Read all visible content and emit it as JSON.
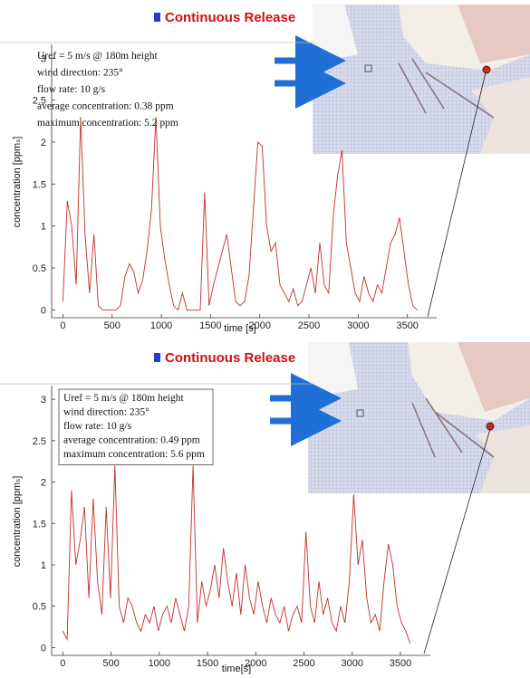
{
  "chart_data": [
    {
      "type": "line",
      "title": "Continuous Release",
      "annotations": [
        "Uref = 5 m/s @ 180m height",
        "wind direction: 235°",
        "flow rate: 10 g/s",
        "average concentration: 0.38 ppm",
        "maximum concentration: 5.2 ppm"
      ],
      "xlabel": "time [s]",
      "ylabel": "concentration [ppmₛ]",
      "color": "#c0302a",
      "xlim": [
        -50,
        3650
      ],
      "ylim": [
        -0.05,
        3.1
      ],
      "xticks": [
        0,
        500,
        1000,
        1500,
        2000,
        2500,
        3000,
        3500
      ],
      "yticks": [
        0,
        0.5,
        1,
        1.5,
        2,
        2.5,
        3
      ],
      "x": [
        0,
        45,
        90,
        135,
        180,
        225,
        270,
        315,
        360,
        405,
        450,
        495,
        540,
        585,
        630,
        675,
        720,
        765,
        810,
        855,
        900,
        945,
        990,
        1035,
        1080,
        1125,
        1170,
        1215,
        1260,
        1305,
        1350,
        1395,
        1440,
        1485,
        1530,
        1575,
        1620,
        1665,
        1710,
        1755,
        1800,
        1845,
        1890,
        1935,
        1980,
        2025,
        2070,
        2115,
        2160,
        2205,
        2250,
        2295,
        2340,
        2385,
        2430,
        2475,
        2520,
        2565,
        2610,
        2655,
        2700,
        2745,
        2790,
        2835,
        2880,
        2925,
        2970,
        3015,
        3060,
        3105,
        3150,
        3195,
        3240,
        3285,
        3330,
        3375,
        3420,
        3465,
        3510,
        3555,
        3600
      ],
      "values": [
        0.1,
        1.3,
        1.0,
        0.3,
        2.3,
        0.9,
        0.2,
        0.9,
        0.05,
        0,
        0,
        0,
        0,
        0.05,
        0.4,
        0.55,
        0.45,
        0.2,
        0.35,
        0.7,
        1.2,
        2.3,
        1.0,
        0.6,
        0.3,
        0.05,
        0,
        0.2,
        0,
        0,
        0,
        0,
        1.4,
        0.05,
        0.3,
        0.5,
        0.7,
        0.9,
        0.5,
        0.1,
        0.05,
        0.1,
        0.4,
        1.2,
        2.0,
        1.95,
        1.0,
        0.7,
        0.8,
        0.3,
        0.2,
        0.1,
        0.25,
        0.05,
        0.1,
        0.3,
        0.5,
        0.2,
        0.8,
        0.3,
        0.2,
        1.1,
        1.6,
        1.9,
        0.8,
        0.5,
        0.2,
        0.1,
        0.4,
        0.2,
        0.1,
        0.3,
        0.2,
        0.5,
        0.8,
        0.9,
        1.1,
        0.7,
        0.3,
        0.05,
        0
      ]
    },
    {
      "type": "line",
      "title": "Continuous Release",
      "annotations": [
        "Uref = 5 m/s @ 180m height",
        "wind direction: 235°",
        "flow rate: 10 g/s",
        "average concentration: 0.49 ppm",
        "maximum concentration: 5.6 ppm"
      ],
      "xlabel": "time[s]",
      "ylabel": "concentration [ppmₛ]",
      "color": "#c0302a",
      "xlim": [
        -50,
        3650
      ],
      "ylim": [
        -0.05,
        3.1
      ],
      "xticks": [
        0,
        500,
        1000,
        1500,
        2000,
        2500,
        3000,
        3500
      ],
      "yticks": [
        0,
        0.5,
        1,
        1.5,
        2,
        2.5,
        3
      ],
      "x": [
        0,
        45,
        90,
        135,
        180,
        225,
        270,
        315,
        360,
        405,
        450,
        495,
        540,
        585,
        630,
        675,
        720,
        765,
        810,
        855,
        900,
        945,
        990,
        1035,
        1080,
        1125,
        1170,
        1215,
        1260,
        1305,
        1350,
        1395,
        1440,
        1485,
        1530,
        1575,
        1620,
        1665,
        1710,
        1755,
        1800,
        1845,
        1890,
        1935,
        1980,
        2025,
        2070,
        2115,
        2160,
        2205,
        2250,
        2295,
        2340,
        2385,
        2430,
        2475,
        2520,
        2565,
        2610,
        2655,
        2700,
        2745,
        2790,
        2835,
        2880,
        2925,
        2970,
        3015,
        3060,
        3105,
        3150,
        3195,
        3240,
        3285,
        3330,
        3375,
        3420,
        3465,
        3510,
        3555,
        3600
      ],
      "values": [
        0.2,
        0.1,
        1.9,
        1.0,
        1.3,
        1.7,
        0.6,
        1.8,
        0.8,
        0.4,
        1.7,
        0.6,
        2.2,
        0.5,
        0.3,
        0.6,
        0.5,
        0.3,
        0.2,
        0.4,
        0.3,
        0.5,
        0.2,
        0.4,
        0.5,
        0.3,
        0.6,
        0.4,
        0.2,
        0.5,
        2.2,
        0.3,
        0.8,
        0.5,
        0.7,
        1.0,
        0.6,
        1.2,
        0.8,
        0.5,
        0.9,
        0.4,
        1.0,
        0.6,
        0.4,
        0.8,
        0.5,
        0.3,
        0.6,
        0.4,
        0.3,
        0.5,
        0.2,
        0.4,
        0.5,
        0.3,
        1.4,
        0.5,
        0.3,
        0.8,
        0.4,
        0.6,
        0.3,
        0.2,
        0.5,
        0.3,
        0.8,
        1.85,
        1.0,
        1.3,
        0.6,
        0.3,
        0.4,
        0.2,
        0.8,
        1.25,
        1.0,
        0.5,
        0.3,
        0.2,
        0.05
      ]
    }
  ]
}
